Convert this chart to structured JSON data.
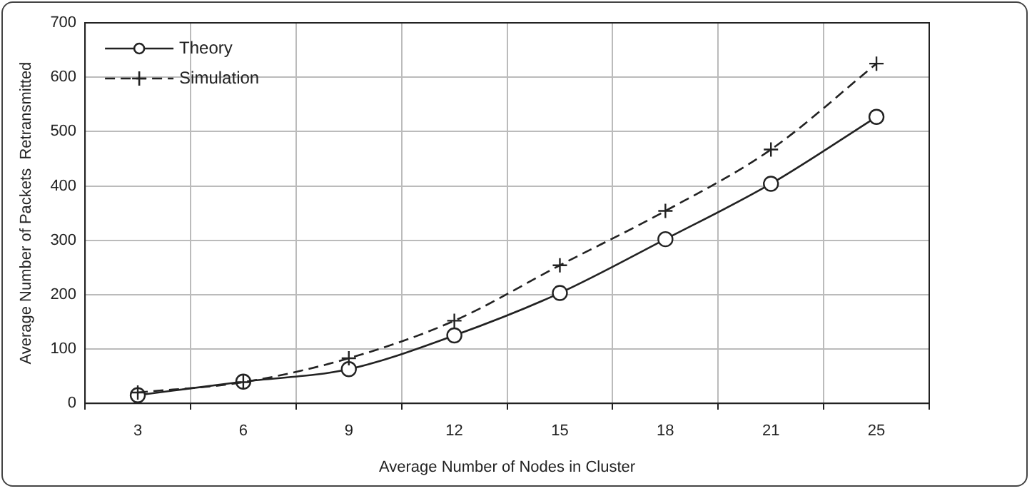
{
  "chart_data": {
    "type": "line",
    "xlabel": "Average Number of Nodes in Cluster",
    "ylabel": "Average Number of Packets  Retransmitted",
    "categories": [
      "3",
      "6",
      "9",
      "12",
      "15",
      "18",
      "21",
      "25"
    ],
    "series": [
      {
        "name": "Theory",
        "color": "#222222",
        "marker": "circle",
        "line_style": "solid",
        "values": [
          15,
          40,
          63,
          125,
          203,
          302,
          404,
          527
        ]
      },
      {
        "name": "Simulation",
        "color": "#222222",
        "marker": "cross",
        "line_style": "dashed",
        "values": [
          20,
          39,
          83,
          152,
          254,
          354,
          467,
          625
        ]
      }
    ],
    "ylim": [
      0,
      700
    ],
    "yticks": [
      0,
      100,
      200,
      300,
      400,
      500,
      600,
      700
    ],
    "grid": true,
    "legend": "top left"
  }
}
